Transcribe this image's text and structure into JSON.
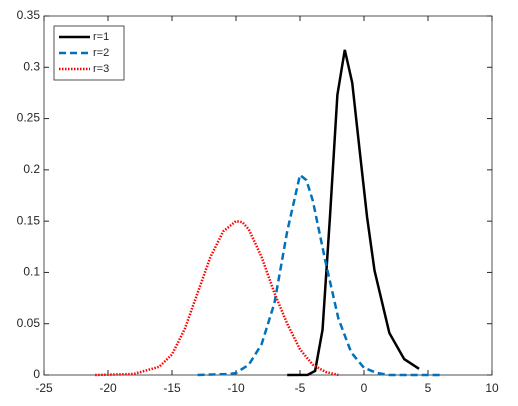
{
  "chart_data": {
    "type": "line",
    "xlim": [
      -25,
      10
    ],
    "xticks": [
      -25,
      -20,
      -15,
      -10,
      -5,
      0,
      5,
      10
    ],
    "ylim": [
      0,
      0.35
    ],
    "yticks": [
      0,
      0.05,
      0.1,
      0.15,
      0.2,
      0.25,
      0.3,
      0.35
    ],
    "legend": "upper left",
    "grid": false,
    "series": [
      {
        "name": "r=1",
        "color": "#000000",
        "dash": "solid",
        "x": [
          -6,
          -4.4,
          -3.82,
          -3.24,
          -2.66,
          -2.08,
          -1.5,
          -0.92,
          -0.34,
          0.24,
          0.82,
          1.98,
          3.14,
          4.3
        ],
        "values": [
          0,
          0.0001,
          0.004,
          0.044,
          0.154,
          0.273,
          0.317,
          0.285,
          0.219,
          0.154,
          0.102,
          0.041,
          0.0155,
          0.006
        ]
      },
      {
        "name": "r=2",
        "color": "#0072bd",
        "dash": "dashed",
        "x": [
          -13,
          -10.5,
          -10,
          -9,
          -8,
          -7,
          -6,
          -5,
          -4.5,
          -4,
          -3,
          -2,
          -1,
          0,
          1,
          2,
          6
        ],
        "values": [
          0,
          0.001,
          0.002,
          0.01,
          0.03,
          0.07,
          0.14,
          0.195,
          0.19,
          0.17,
          0.11,
          0.055,
          0.022,
          0.007,
          0.002,
          0,
          0
        ]
      },
      {
        "name": "r=3",
        "color": "#ff0000",
        "dash": "dotted",
        "x": [
          -21,
          -18,
          -16,
          -15,
          -14,
          -13,
          -12,
          -11,
          -10,
          -9.5,
          -9,
          -8,
          -7,
          -6,
          -5,
          -4,
          -3,
          -2
        ],
        "values": [
          0,
          0.001,
          0.008,
          0.02,
          0.045,
          0.08,
          0.115,
          0.14,
          0.15,
          0.149,
          0.142,
          0.115,
          0.08,
          0.05,
          0.025,
          0.01,
          0.003,
          0
        ]
      }
    ]
  }
}
